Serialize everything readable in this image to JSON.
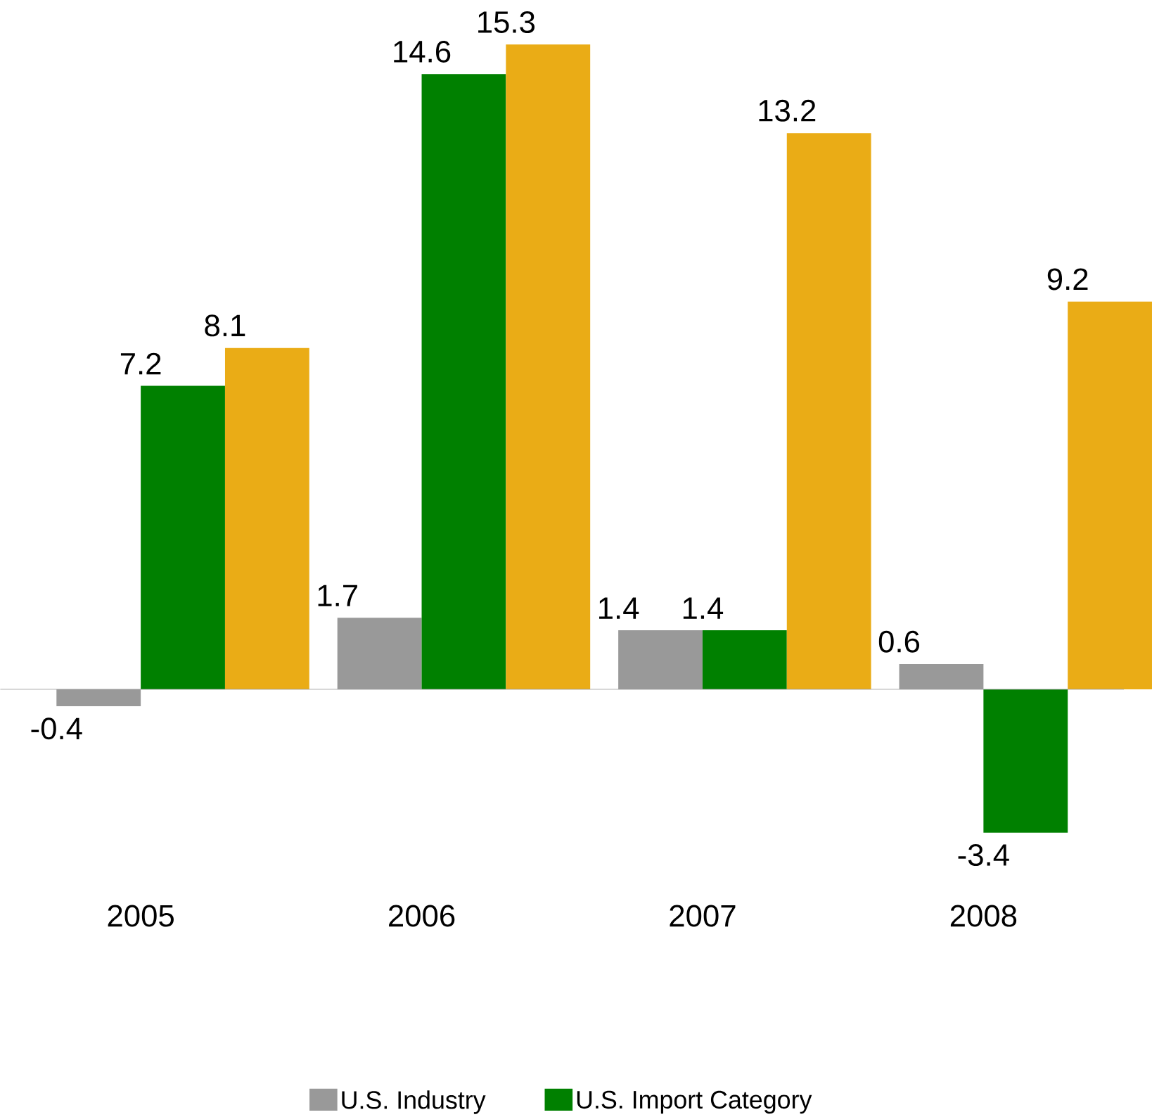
{
  "chart_data": {
    "type": "bar",
    "categories": [
      "2005",
      "2006",
      "2007",
      "2008"
    ],
    "series": [
      {
        "name": "U.S. Industry",
        "color": "#999999",
        "values": [
          -0.4,
          1.7,
          1.4,
          0.6
        ]
      },
      {
        "name": "U.S. Import Category",
        "color": "#008000",
        "values": [
          7.2,
          14.6,
          1.4,
          -3.4
        ]
      },
      {
        "color": "#eaac16",
        "values": [
          8.1,
          15.3,
          13.2,
          9.2
        ]
      }
    ],
    "data_labels": true,
    "legend": "bottom"
  }
}
